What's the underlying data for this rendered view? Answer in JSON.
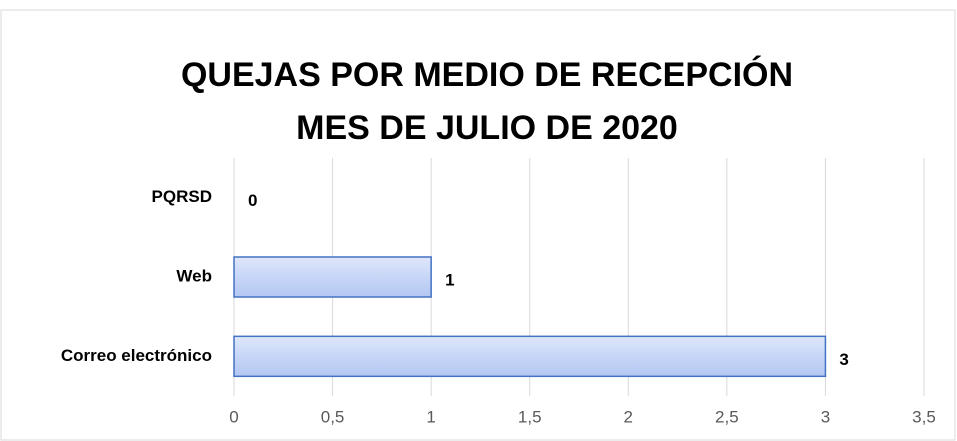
{
  "chart_data": {
    "type": "hbar",
    "title": "QUEJAS POR MEDIO DE RECEPCIÓN",
    "subtitle": "MES DE JULIO DE 2020",
    "categories": [
      "PQRSD",
      "Web",
      "Correo electrónico"
    ],
    "values": [
      0,
      1,
      3
    ],
    "color": "#4472c4",
    "xlim": [
      0,
      3.5
    ],
    "xticks": [
      0,
      {
        "value": 0.5,
        "label": "0,5"
      },
      1,
      {
        "value": 1.5,
        "label": "1,5"
      },
      2,
      {
        "value": 2.5,
        "label": "2,5"
      },
      3,
      {
        "value": 3.5,
        "label": "3,5"
      }
    ],
    "grid": true
  }
}
